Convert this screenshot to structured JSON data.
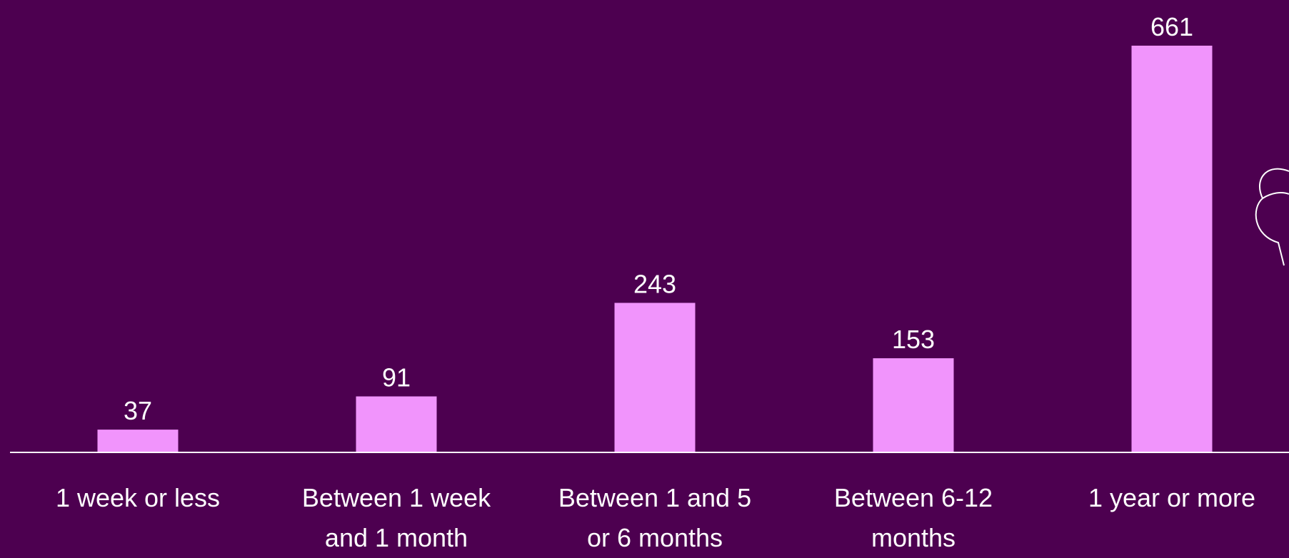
{
  "chart_data": {
    "type": "bar",
    "categories": [
      "1 week or less",
      "Between 1 week and 1 month",
      "Between 1 and 5 or 6 months",
      "Between 6-12 months",
      "1 year or more"
    ],
    "values": [
      37,
      91,
      243,
      153,
      661
    ],
    "color": "#f194fc"
  }
}
